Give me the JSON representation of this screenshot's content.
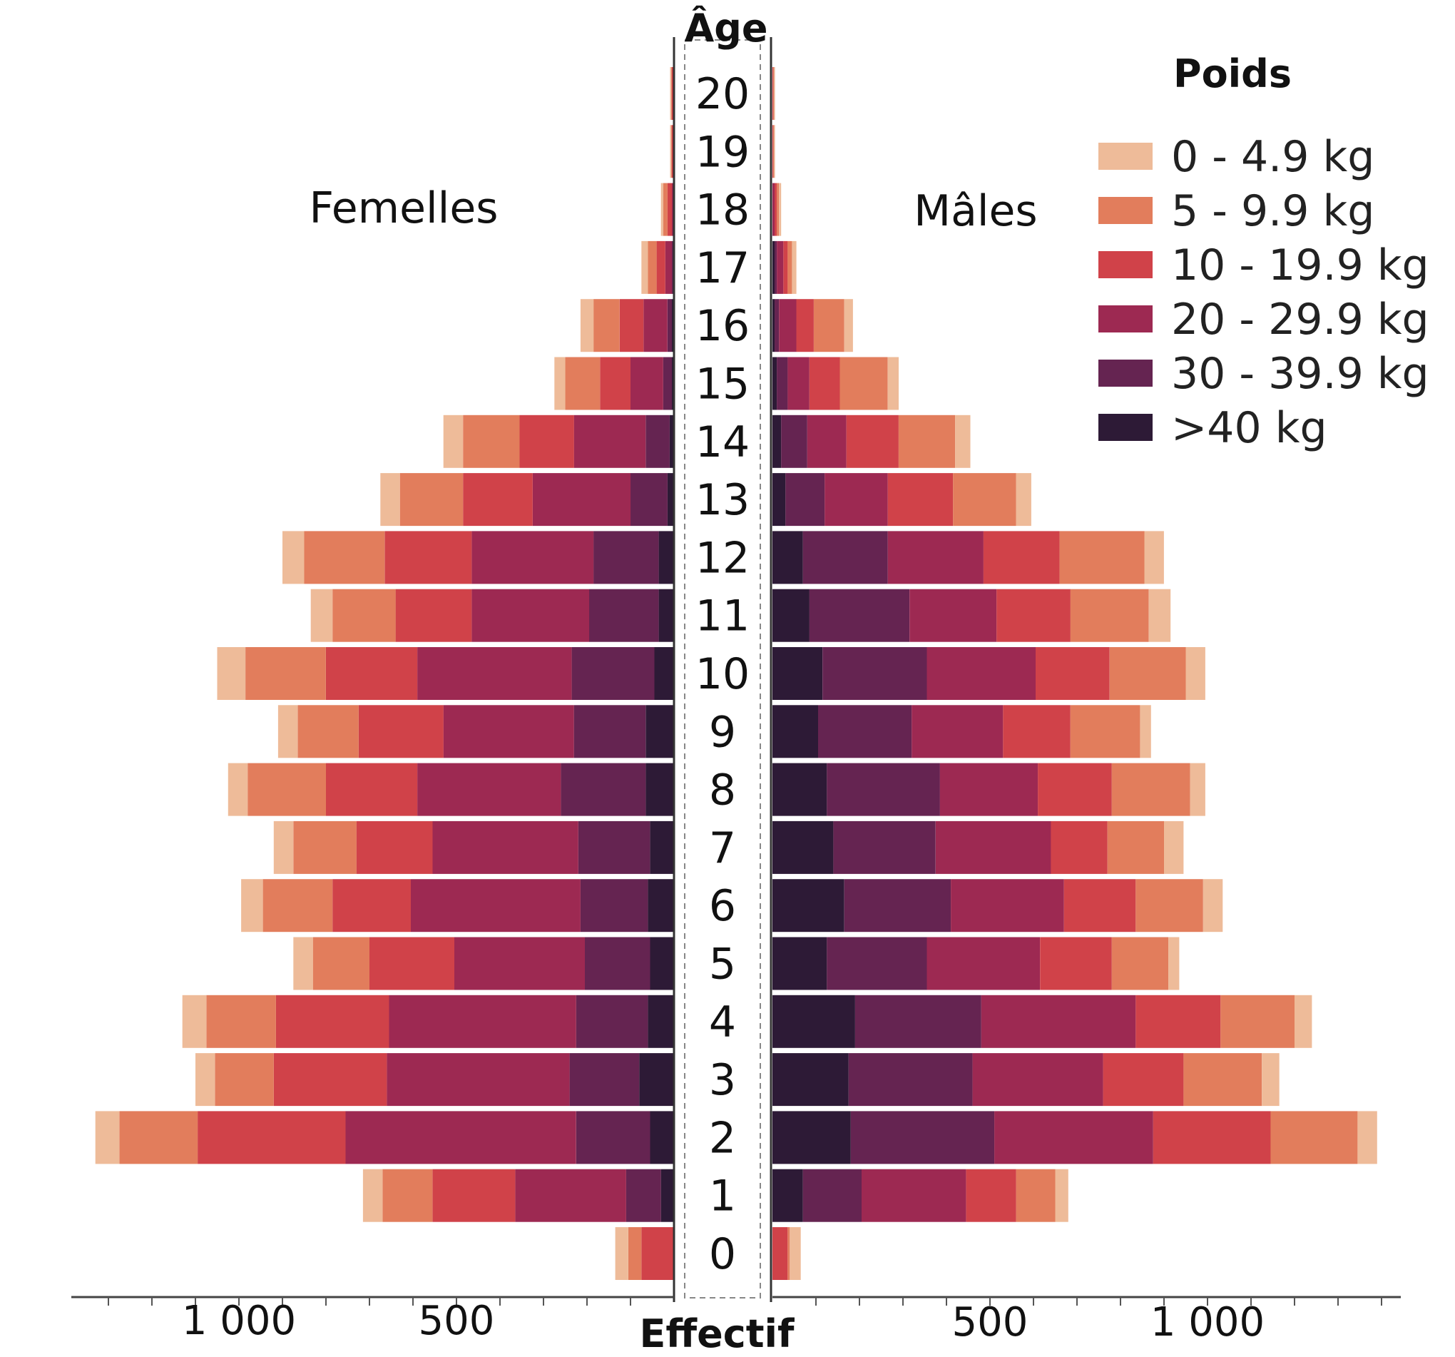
{
  "chart_data": {
    "type": "bar",
    "orientation": "horizontal",
    "stacked": true,
    "subtype": "population pyramid",
    "title": "",
    "age_axis_title": "Âge",
    "count_axis_title": "Effectif",
    "left_group": "Femelles",
    "right_group": "Mâles",
    "legend_title": "Poids",
    "legend_position": "top-right",
    "ages": [
      0,
      1,
      2,
      3,
      4,
      5,
      6,
      7,
      8,
      9,
      10,
      11,
      12,
      13,
      14,
      15,
      16,
      17,
      18,
      19,
      20
    ],
    "series": [
      {
        "name": "0 - 4.9 kg",
        "color": "#EEBB99",
        "femelles": [
          30,
          45,
          55,
          45,
          55,
          45,
          50,
          45,
          45,
          45,
          65,
          50,
          50,
          45,
          45,
          25,
          30,
          15,
          5,
          2,
          2
        ],
        "males": [
          25,
          30,
          45,
          40,
          40,
          25,
          45,
          45,
          35,
          25,
          45,
          50,
          45,
          35,
          35,
          25,
          20,
          10,
          5,
          2,
          2
        ]
      },
      {
        "name": "5 - 9.9 kg",
        "color": "#E27D5C",
        "femelles": [
          30,
          115,
          180,
          135,
          160,
          130,
          160,
          145,
          180,
          140,
          185,
          145,
          185,
          145,
          130,
          80,
          60,
          20,
          10,
          2,
          2
        ],
        "males": [
          5,
          90,
          200,
          180,
          170,
          130,
          155,
          130,
          180,
          160,
          175,
          180,
          195,
          145,
          130,
          110,
          70,
          10,
          5,
          2,
          2
        ]
      },
      {
        "name": "10 - 19.9 kg",
        "color": "#D04249",
        "femelles": [
          75,
          190,
          340,
          260,
          260,
          195,
          180,
          175,
          210,
          195,
          210,
          175,
          200,
          160,
          125,
          70,
          55,
          20,
          10,
          5,
          5
        ],
        "males": [
          35,
          115,
          270,
          185,
          195,
          165,
          165,
          130,
          170,
          155,
          170,
          170,
          175,
          150,
          120,
          70,
          40,
          10,
          5,
          2,
          2
        ]
      },
      {
        "name": "20 - 29.9 kg",
        "color": "#9D2952",
        "femelles": [
          0,
          255,
          530,
          420,
          430,
          300,
          390,
          335,
          330,
          300,
          355,
          270,
          280,
          225,
          165,
          75,
          55,
          15,
          5,
          0,
          0
        ],
        "males": [
          0,
          240,
          365,
          300,
          355,
          260,
          260,
          265,
          225,
          210,
          250,
          200,
          220,
          145,
          90,
          50,
          40,
          15,
          5,
          0,
          0
        ]
      },
      {
        "name": "30 - 39.9 kg",
        "color": "#652451",
        "femelles": [
          0,
          80,
          170,
          160,
          165,
          150,
          155,
          165,
          195,
          165,
          190,
          160,
          150,
          85,
          55,
          20,
          10,
          5,
          0,
          0,
          0
        ],
        "males": [
          0,
          135,
          330,
          285,
          290,
          230,
          245,
          235,
          260,
          215,
          240,
          230,
          195,
          90,
          60,
          25,
          10,
          5,
          0,
          0,
          0
        ]
      },
      {
        "name": ">40 kg",
        "color": "#2D1A36",
        "femelles": [
          0,
          30,
          55,
          80,
          60,
          55,
          60,
          55,
          65,
          65,
          45,
          35,
          35,
          15,
          10,
          5,
          5,
          0,
          0,
          0,
          0
        ],
        "males": [
          0,
          70,
          180,
          175,
          190,
          125,
          165,
          140,
          125,
          105,
          115,
          85,
          70,
          30,
          20,
          10,
          5,
          5,
          0,
          0,
          0
        ]
      }
    ],
    "axis": {
      "max": 1400,
      "tick_step": 100,
      "left_tick_labels": [
        {
          "value": 1000,
          "label": "1 000"
        },
        {
          "value": 500,
          "label": "500"
        }
      ],
      "right_tick_labels": [
        {
          "value": 500,
          "label": "500"
        },
        {
          "value": 1000,
          "label": "1 000"
        }
      ]
    },
    "grid": false
  }
}
